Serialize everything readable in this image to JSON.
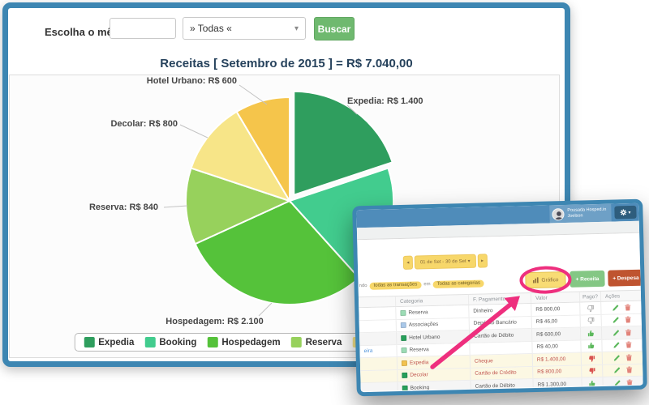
{
  "main_window": {
    "form": {
      "label": "Escolha o mês",
      "input_value": "",
      "select_value": "» Todas «",
      "caret": "▾",
      "search_button": "Buscar"
    },
    "title": "Receitas [ Setembro de 2015 ] = R$ 7.040,00"
  },
  "chart_data": {
    "type": "pie",
    "title": "Receitas [ Setembro de 2015 ] = R$ 7.040,00",
    "total_label": "R$ 7.040,00",
    "categories": [
      "Expedia",
      "Booking",
      "Hospedagem",
      "Reserva",
      "Decolar",
      "Hotel Urbano"
    ],
    "values": [
      1400,
      1300,
      2100,
      840,
      800,
      600
    ],
    "colors": [
      "#2f9e5e",
      "#42cc8e",
      "#55c23a",
      "#97d15c",
      "#f7e588",
      "#f5c54b"
    ],
    "exploded_index": 0,
    "start_angle_deg": 0,
    "direction": "clockwise",
    "legend_position": "bottom",
    "point_labels": [
      "Expedia: R$ 1.400",
      "Hotel Urbano: R$ 600",
      "Decolar: R$ 800",
      "Reserva: R$ 840",
      "Hospedagem: R$ 2.100"
    ]
  },
  "overlay_window": {
    "user": {
      "name": "Pousada Hosped.in",
      "subname": "Joelson"
    },
    "gear_caret": "▾",
    "date_nav": {
      "prev": "◂",
      "label": "01 de Set - 30 de Set",
      "caret": "▾",
      "next": "▸"
    },
    "filter": {
      "prefix": "ndo",
      "transactions_pill": "todas as transações",
      "connector": "em",
      "categories_pill": "Todas as categorias"
    },
    "toolbar": {
      "grafico": "Gráfico",
      "receita": "+ Receita",
      "despesa": "+ Despesa"
    },
    "table": {
      "headers": [
        "Categoria",
        "F. Pagamento",
        "Valor",
        "Pago?",
        "Ações"
      ],
      "rows": [
        {
          "date": "",
          "category": "Reserva",
          "swatch": "#9cdcb5",
          "payment": "Dinheiro",
          "value": "R$ 800,00",
          "paid": "gray-down",
          "tint": "none",
          "red": false
        },
        {
          "date": "",
          "category": "Associações",
          "swatch": "#a9c8e9",
          "payment": "Depósito Bancário",
          "value": "R$ 46,00",
          "paid": "gray-down",
          "tint": "none",
          "red": false
        },
        {
          "date": "",
          "category": "Hotel Urbano",
          "swatch": "#27a05b",
          "payment": "Cartão de Débito",
          "value": "R$ 600,00",
          "paid": "green-up",
          "tint": "gray",
          "red": false
        },
        {
          "date": "eira",
          "category": "Reserva",
          "swatch": "#9cdcb5",
          "payment": "",
          "value": "R$ 40,00",
          "paid": "green-up",
          "tint": "none",
          "red": false
        },
        {
          "date": "",
          "category": "Expedia",
          "swatch": "#f2c24e",
          "payment": "Cheque",
          "value": "R$ 1.400,00",
          "paid": "red-down",
          "tint": "yellow",
          "red": true
        },
        {
          "date": "",
          "category": "Decolar",
          "swatch": "#27a05b",
          "payment": "Cartão de Crédito",
          "value": "R$ 800,00",
          "paid": "red-down",
          "tint": "yellow",
          "red": true
        },
        {
          "date": "",
          "category": "Booking",
          "swatch": "#27a05b",
          "payment": "Cartão de Débito",
          "value": "R$ 1.300,00",
          "paid": "green-up",
          "tint": "gray",
          "red": false
        }
      ]
    },
    "colors": {
      "annotation_pink": "#ee2f7e",
      "window_border": "#3d86b2",
      "header_blue": "#4f8cba",
      "yellow_button": "#f8dc74",
      "green_button": "#84c784",
      "red_button": "#bf5430",
      "paid_green": "#5cb85c",
      "unpaid_red": "#d9534f"
    }
  }
}
